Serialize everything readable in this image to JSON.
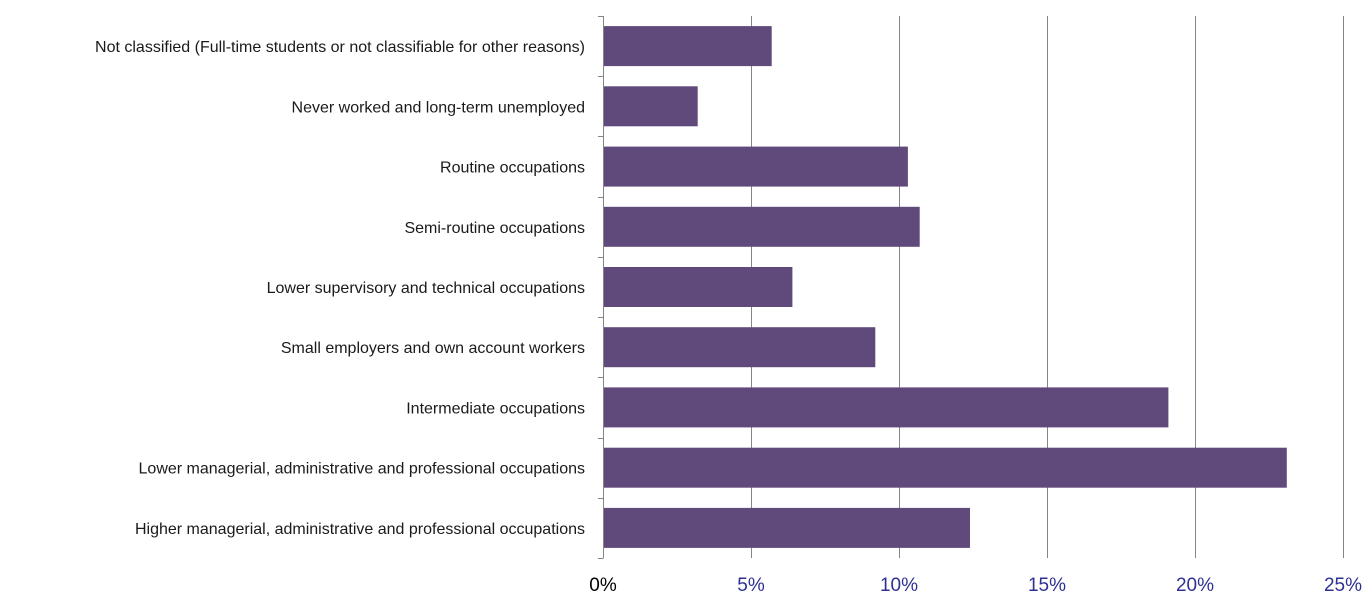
{
  "chart_data": {
    "type": "bar",
    "orientation": "horizontal",
    "categories": [
      "Not classified (Full-time students or not classifiable for other reasons)",
      "Never worked and long-term unemployed",
      "Routine occupations",
      "Semi-routine occupations",
      "Lower supervisory and technical occupations",
      "Small employers and own account workers",
      "Intermediate occupations",
      "Lower managerial, administrative and professional occupations",
      "Higher managerial, administrative and professional occupations"
    ],
    "values": [
      5.7,
      3.2,
      10.3,
      10.7,
      6.4,
      9.2,
      19.1,
      23.1,
      12.4
    ],
    "xlim": [
      0,
      25
    ],
    "x_ticks": [
      "0%",
      "5%",
      "10%",
      "15%",
      "20%",
      "25%"
    ],
    "title": "",
    "xlabel": "",
    "ylabel": "",
    "grid": "vertical",
    "legend": "none",
    "bar_color": "#604a7b",
    "gridline_color": "#868686",
    "first_tick_color": "#000000",
    "tick_color": "#2e3192"
  }
}
